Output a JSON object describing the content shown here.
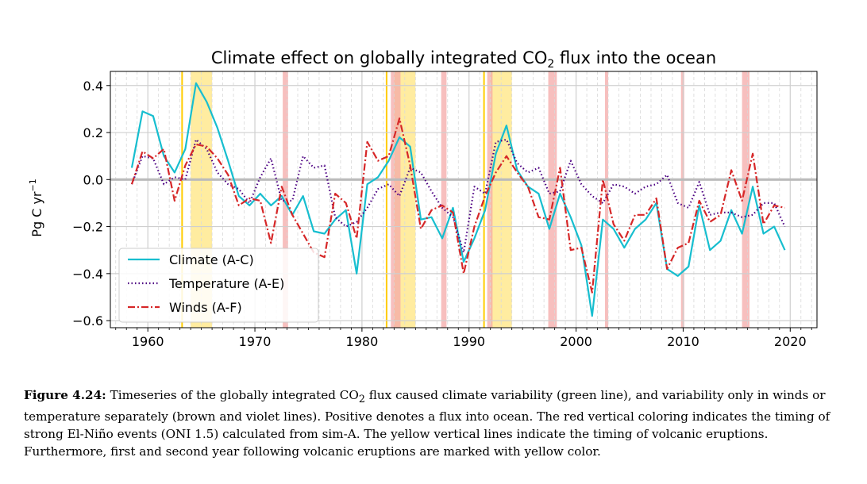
{
  "chart_data": {
    "type": "line",
    "title": "Climate effect on globally integrated CO",
    "title_subscript": "2",
    "title_suffix": " flux into the ocean",
    "ylabel": "Pg C yr",
    "ylabel_superscript": "−1",
    "xlim": [
      1956.5,
      2022.5
    ],
    "ylim": [
      -0.63,
      0.46
    ],
    "xticks": [
      1960,
      1970,
      1980,
      1990,
      2000,
      2010,
      2020
    ],
    "yticks": [
      {
        "v": 0.4,
        "label": "0.4"
      },
      {
        "v": 0.2,
        "label": "0.2"
      },
      {
        "v": 0.0,
        "label": "0.0"
      },
      {
        "v": -0.2,
        "label": "−0.2"
      },
      {
        "v": -0.4,
        "label": "−0.4"
      },
      {
        "v": -0.6,
        "label": "−0.6"
      }
    ],
    "grid": true,
    "legend_position": "lower-left",
    "colors": {
      "climate": "#17becf",
      "temperature": "#4b0082",
      "winds": "#d62728",
      "elnino_band": "#f4a9a8",
      "volcanic_band": "#ffe680",
      "volcanic_line": "#ffcc00",
      "zero_line": "#bbbbbb"
    },
    "elnino_bands": [
      [
        1972.6,
        1973.1
      ],
      [
        1982.7,
        1983.6
      ],
      [
        1987.4,
        1987.9
      ],
      [
        1991.7,
        1992.2
      ],
      [
        1997.4,
        1998.2
      ],
      [
        2002.7,
        2003.0
      ],
      [
        2009.8,
        2010.1
      ],
      [
        2015.5,
        2016.2
      ]
    ],
    "volcanic_bands": [
      [
        1964.0,
        1966.0
      ],
      [
        1983.0,
        1985.0
      ],
      [
        1992.0,
        1994.0
      ]
    ],
    "volcanic_lines": [
      1963.2,
      1982.3,
      1991.4
    ],
    "series": [
      {
        "name": "Climate (A-C)",
        "key": "climate",
        "dash": "",
        "x": [
          1958.5,
          1959.5,
          1960.5,
          1961.5,
          1962.5,
          1963.5,
          1964.5,
          1965.5,
          1966.5,
          1967.5,
          1968.5,
          1969.5,
          1970.5,
          1971.5,
          1972.5,
          1973.5,
          1974.5,
          1975.5,
          1976.5,
          1977.5,
          1978.5,
          1979.5,
          1980.5,
          1981.5,
          1982.5,
          1983.5,
          1984.5,
          1985.5,
          1986.5,
          1987.5,
          1988.5,
          1989.5,
          1990.5,
          1991.5,
          1992.5,
          1993.5,
          1994.5,
          1995.5,
          1996.5,
          1997.5,
          1998.5,
          1999.5,
          2000.5,
          2001.5,
          2002.5,
          2003.5,
          2004.5,
          2005.5,
          2006.5,
          2007.5,
          2008.5,
          2009.5,
          2010.5,
          2011.5,
          2012.5,
          2013.5,
          2014.5,
          2015.5,
          2016.5,
          2017.5,
          2018.5,
          2019.5
        ],
        "y": [
          0.05,
          0.29,
          0.27,
          0.1,
          0.03,
          0.13,
          0.41,
          0.33,
          0.22,
          0.08,
          -0.07,
          -0.11,
          -0.06,
          -0.11,
          -0.07,
          -0.15,
          -0.07,
          -0.22,
          -0.23,
          -0.17,
          -0.13,
          -0.4,
          -0.02,
          0.01,
          0.08,
          0.18,
          0.14,
          -0.17,
          -0.16,
          -0.25,
          -0.12,
          -0.35,
          -0.25,
          -0.13,
          0.11,
          0.23,
          0.04,
          -0.03,
          -0.06,
          -0.21,
          -0.06,
          -0.16,
          -0.28,
          -0.58,
          -0.17,
          -0.21,
          -0.29,
          -0.21,
          -0.17,
          -0.1,
          -0.38,
          -0.41,
          -0.37,
          -0.11,
          -0.3,
          -0.26,
          -0.13,
          -0.23,
          -0.03,
          -0.23,
          -0.2,
          -0.3
        ]
      },
      {
        "name": "Temperature (A-E)",
        "key": "temperature",
        "dash": "1.5 3",
        "x": [
          1958.5,
          1959.5,
          1960.5,
          1961.5,
          1962.5,
          1963.5,
          1964.5,
          1965.5,
          1966.5,
          1967.5,
          1968.5,
          1969.5,
          1970.5,
          1971.5,
          1972.5,
          1973.5,
          1974.5,
          1975.5,
          1976.5,
          1977.5,
          1978.5,
          1979.5,
          1980.5,
          1981.5,
          1982.5,
          1983.5,
          1984.5,
          1985.5,
          1986.5,
          1987.5,
          1988.5,
          1989.5,
          1990.5,
          1991.5,
          1992.5,
          1993.5,
          1994.5,
          1995.5,
          1996.5,
          1997.5,
          1998.5,
          1999.5,
          2000.5,
          2001.5,
          2002.5,
          2003.5,
          2004.5,
          2005.5,
          2006.5,
          2007.5,
          2008.5,
          2009.5,
          2010.5,
          2011.5,
          2012.5,
          2013.5,
          2014.5,
          2015.5,
          2016.5,
          2017.5,
          2018.5,
          2019.5
        ],
        "y": [
          -0.02,
          0.1,
          0.09,
          -0.02,
          0.01,
          0.0,
          0.17,
          0.13,
          0.03,
          -0.02,
          -0.04,
          -0.1,
          0.01,
          0.09,
          -0.09,
          -0.09,
          0.1,
          0.05,
          0.06,
          -0.16,
          -0.2,
          -0.18,
          -0.12,
          -0.04,
          -0.02,
          -0.07,
          0.05,
          0.03,
          -0.05,
          -0.12,
          -0.16,
          -0.31,
          -0.03,
          -0.06,
          0.16,
          0.17,
          0.07,
          0.03,
          0.05,
          -0.06,
          -0.05,
          0.08,
          -0.02,
          -0.07,
          -0.1,
          -0.02,
          -0.03,
          -0.06,
          -0.03,
          -0.02,
          0.02,
          -0.1,
          -0.12,
          -0.01,
          -0.15,
          -0.14,
          -0.14,
          -0.16,
          -0.15,
          -0.1,
          -0.1,
          -0.2
        ]
      },
      {
        "name": "Winds (A-F)",
        "key": "winds",
        "dash": "9 3 2 3",
        "x": [
          1958.5,
          1959.5,
          1960.5,
          1961.5,
          1962.5,
          1963.5,
          1964.5,
          1965.5,
          1966.5,
          1967.5,
          1968.5,
          1969.5,
          1970.5,
          1971.5,
          1972.5,
          1973.5,
          1974.5,
          1975.5,
          1976.5,
          1977.5,
          1978.5,
          1979.5,
          1980.5,
          1981.5,
          1982.5,
          1983.5,
          1984.5,
          1985.5,
          1986.5,
          1987.5,
          1988.5,
          1989.5,
          1990.5,
          1991.5,
          1992.5,
          1993.5,
          1994.5,
          1995.5,
          1996.5,
          1997.5,
          1998.5,
          1999.5,
          2000.5,
          2001.5,
          2002.5,
          2003.5,
          2004.5,
          2005.5,
          2006.5,
          2007.5,
          2008.5,
          2009.5,
          2010.5,
          2011.5,
          2012.5,
          2013.5,
          2014.5,
          2015.5,
          2016.5,
          2017.5,
          2018.5,
          2019.5
        ],
        "y": [
          -0.02,
          0.12,
          0.09,
          0.13,
          -0.09,
          0.06,
          0.15,
          0.14,
          0.09,
          0.02,
          -0.11,
          -0.08,
          -0.09,
          -0.27,
          -0.03,
          -0.15,
          -0.23,
          -0.31,
          -0.33,
          -0.06,
          -0.1,
          -0.25,
          0.16,
          0.08,
          0.1,
          0.26,
          0.06,
          -0.21,
          -0.13,
          -0.11,
          -0.14,
          -0.4,
          -0.2,
          -0.07,
          0.03,
          0.1,
          0.03,
          -0.03,
          -0.16,
          -0.17,
          0.05,
          -0.3,
          -0.29,
          -0.48,
          0.0,
          -0.19,
          -0.26,
          -0.15,
          -0.15,
          -0.08,
          -0.38,
          -0.29,
          -0.27,
          -0.09,
          -0.18,
          -0.15,
          0.04,
          -0.09,
          0.11,
          -0.19,
          -0.11,
          -0.12
        ]
      }
    ]
  },
  "caption": {
    "label": "Figure 4.24:",
    "part1": " Timeseries of the globally integrated CO",
    "sub": "2",
    "part2": " flux caused climate variability (green line), and variability only in winds or temperature separately (brown and violet lines). Positive denotes a flux into ocean. The red vertical coloring indicates the timing of strong El-Niño events (ONI 1.5) calculated from sim-A. The yellow vertical lines indicate the timing of volcanic eruptions. Furthermore, first and second year following volcanic eruptions are marked with yellow color."
  }
}
